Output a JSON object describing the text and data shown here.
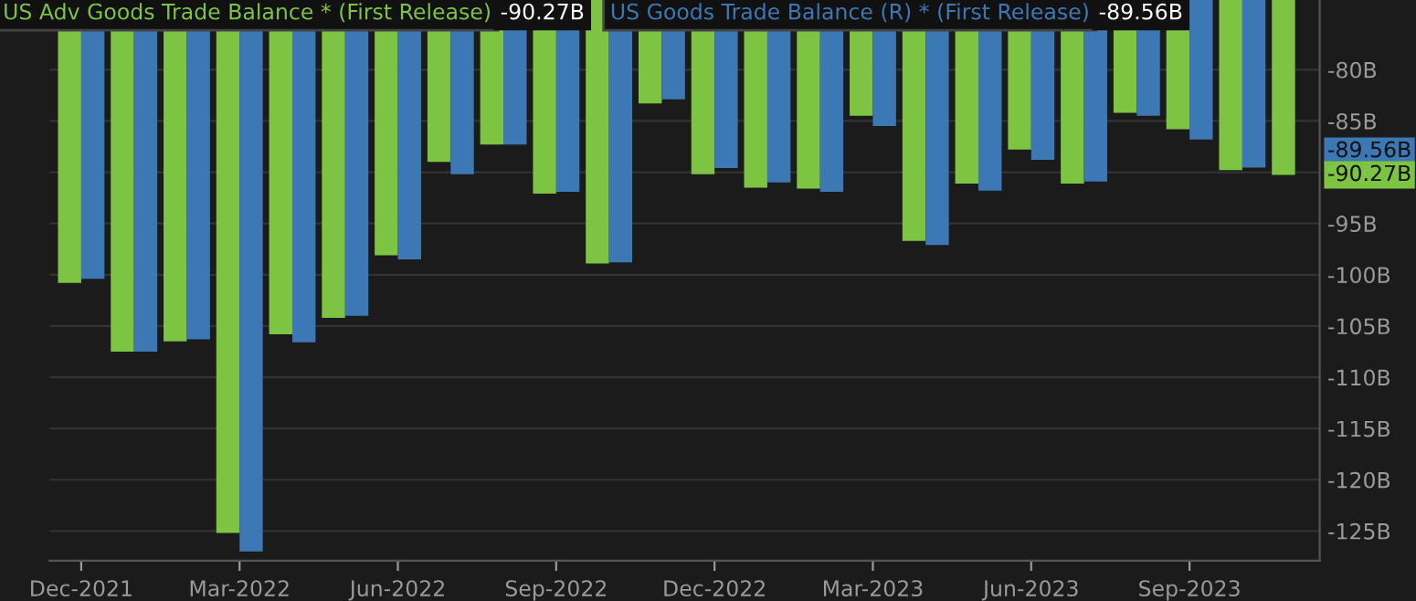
{
  "chart_data": {
    "type": "bar",
    "x": [
      "2021-12",
      "2022-01",
      "2022-02",
      "2022-03",
      "2022-04",
      "2022-05",
      "2022-06",
      "2022-07",
      "2022-08",
      "2022-09",
      "2022-10",
      "2022-11",
      "2022-12",
      "2023-01",
      "2023-02",
      "2023-03",
      "2023-04",
      "2023-05",
      "2023-06",
      "2023-07",
      "2023-08",
      "2023-09",
      "2023-10",
      "2023-11"
    ],
    "series": [
      {
        "name": "US Adv Goods Trade Balance * (First Release)",
        "color": "#7dc443",
        "values": [
          -100.8,
          -107.5,
          -106.5,
          -125.2,
          -105.8,
          -104.2,
          -98.1,
          -89.0,
          -87.3,
          -92.1,
          -98.9,
          -83.3,
          -90.2,
          -91.5,
          -91.6,
          -84.5,
          -96.7,
          -91.1,
          -87.8,
          -91.1,
          -84.2,
          -85.8,
          -89.8,
          -90.27
        ]
      },
      {
        "name": "US Goods Trade Balance (R) * (First Release)",
        "color": "#3b78b4",
        "values": [
          -100.4,
          -107.5,
          -106.3,
          -127.0,
          -106.6,
          -104.0,
          -98.5,
          -90.2,
          -87.3,
          -91.9,
          -98.8,
          -82.9,
          -89.6,
          -91.0,
          -91.9,
          -85.5,
          -97.1,
          -91.8,
          -88.8,
          -90.9,
          -84.5,
          -86.8,
          -89.56,
          null
        ]
      }
    ],
    "annotations": [
      "-90.27B",
      "-89.56B"
    ],
    "xlim": [
      "2021-11-13",
      "2023-11-15"
    ],
    "xticks": [
      {
        "value": "2021-12",
        "label": "Dec-2021"
      },
      {
        "value": "2022-03",
        "label": "Mar-2022"
      },
      {
        "value": "2022-06",
        "label": "Jun-2022"
      },
      {
        "value": "2022-09",
        "label": "Sep-2022"
      },
      {
        "value": "2022-12",
        "label": "Dec-2022"
      },
      {
        "value": "2023-03",
        "label": "Mar-2023"
      },
      {
        "value": "2023-06",
        "label": "Jun-2023"
      },
      {
        "value": "2023-09",
        "label": "Sep-2023"
      }
    ],
    "ylim": [
      -127.9,
      -73.2
    ],
    "yticks": [
      {
        "value": -80,
        "label": "-80B"
      },
      {
        "value": -85,
        "label": "-85B"
      },
      {
        "value": -90,
        "label": null
      },
      {
        "value": -95,
        "label": "-95B"
      },
      {
        "value": -100,
        "label": "-100B"
      },
      {
        "value": -105,
        "label": "-105B"
      },
      {
        "value": -110,
        "label": "-110B"
      },
      {
        "value": -115,
        "label": "-115B"
      },
      {
        "value": -120,
        "label": "-120B"
      },
      {
        "value": -125,
        "label": "-125B"
      }
    ],
    "grid": "y",
    "legend": "top left"
  }
}
